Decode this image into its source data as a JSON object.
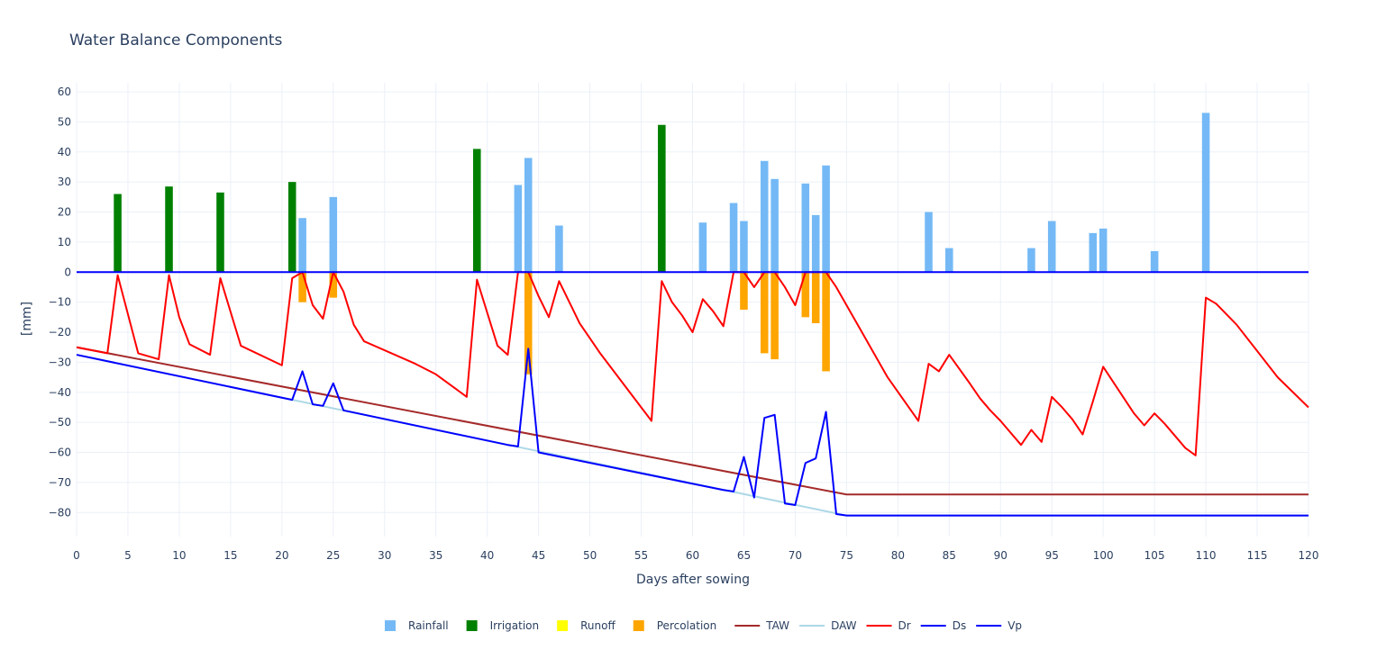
{
  "chart_data": {
    "type": "bar+line",
    "title": "Water Balance Components",
    "xlabel": "Days after sowing",
    "ylabel": "[mm]",
    "xlim": [
      0,
      120
    ],
    "ylim": [
      -88,
      63
    ],
    "xticks": [
      0,
      5,
      10,
      15,
      20,
      25,
      30,
      35,
      40,
      45,
      50,
      55,
      60,
      65,
      70,
      75,
      80,
      85,
      90,
      95,
      100,
      105,
      110,
      115,
      120
    ],
    "yticks": [
      60,
      50,
      40,
      30,
      20,
      10,
      0,
      -10,
      -20,
      -30,
      -40,
      -50,
      -60,
      -70,
      -80
    ],
    "grid": true,
    "legend_position": "bottom-center",
    "bar_series": [
      {
        "name": "Rainfall",
        "color": "#74b9f6",
        "points": [
          [
            22,
            18
          ],
          [
            25,
            25
          ],
          [
            43,
            29
          ],
          [
            44,
            38
          ],
          [
            47,
            15.5
          ],
          [
            61,
            16.5
          ],
          [
            64,
            23
          ],
          [
            65,
            17
          ],
          [
            67,
            37
          ],
          [
            68,
            31
          ],
          [
            71,
            29.5
          ],
          [
            72,
            19
          ],
          [
            73,
            35.5
          ],
          [
            83,
            20
          ],
          [
            85,
            8
          ],
          [
            93,
            8
          ],
          [
            95,
            17
          ],
          [
            99,
            13
          ],
          [
            100,
            14.5
          ],
          [
            105,
            7
          ],
          [
            110,
            53
          ]
        ]
      },
      {
        "name": "Irrigation",
        "color": "#008000",
        "points": [
          [
            4,
            26
          ],
          [
            9,
            28.5
          ],
          [
            14,
            26.5
          ],
          [
            21,
            30
          ],
          [
            39,
            41
          ],
          [
            57,
            49
          ]
        ]
      },
      {
        "name": "Runoff",
        "color": "#ffff00",
        "points": []
      },
      {
        "name": "Percolation",
        "color": "#ffa500",
        "points": [
          [
            22,
            -10
          ],
          [
            25,
            -8.5
          ],
          [
            44,
            -34
          ],
          [
            65,
            -12.5
          ],
          [
            67,
            -27
          ],
          [
            68,
            -29
          ],
          [
            71,
            -15
          ],
          [
            72,
            -17
          ],
          [
            73,
            -33
          ]
        ]
      }
    ],
    "line_series": [
      {
        "name": "TAW",
        "color": "#a52a2a",
        "points": [
          [
            0,
            -25
          ],
          [
            75,
            -74
          ],
          [
            120,
            -74
          ]
        ]
      },
      {
        "name": "DAW",
        "color": "#add8e6",
        "points": [
          [
            0,
            -27.5
          ],
          [
            75,
            -81
          ],
          [
            120,
            -81
          ]
        ]
      },
      {
        "name": "Dr",
        "color": "#ff0000",
        "points": [
          [
            0,
            -25
          ],
          [
            3,
            -27
          ],
          [
            4,
            -1
          ],
          [
            6,
            -27
          ],
          [
            8,
            -29
          ],
          [
            9,
            -1
          ],
          [
            10,
            -15
          ],
          [
            11,
            -24
          ],
          [
            13,
            -27.5
          ],
          [
            14,
            -2
          ],
          [
            16,
            -24.5
          ],
          [
            20,
            -31
          ],
          [
            21,
            -2
          ],
          [
            22,
            0
          ],
          [
            23,
            -11
          ],
          [
            24,
            -15.5
          ],
          [
            25,
            0
          ],
          [
            26,
            -6.5
          ],
          [
            27,
            -17.5
          ],
          [
            28,
            -23
          ],
          [
            33,
            -30.5
          ],
          [
            35,
            -34
          ],
          [
            38,
            -41.5
          ],
          [
            39,
            -2.5
          ],
          [
            41,
            -24.5
          ],
          [
            42,
            -27.5
          ],
          [
            43,
            0
          ],
          [
            44,
            0
          ],
          [
            45,
            -8
          ],
          [
            46,
            -15
          ],
          [
            47,
            -3
          ],
          [
            49,
            -17
          ],
          [
            51,
            -27
          ],
          [
            55,
            -45
          ],
          [
            56,
            -49.5
          ],
          [
            57,
            -3
          ],
          [
            58,
            -10
          ],
          [
            59,
            -14.5
          ],
          [
            60,
            -20
          ],
          [
            61,
            -9
          ],
          [
            62,
            -13
          ],
          [
            63,
            -18
          ],
          [
            64,
            0
          ],
          [
            65,
            0
          ],
          [
            66,
            -5
          ],
          [
            67,
            0
          ],
          [
            68,
            0
          ],
          [
            69,
            -5
          ],
          [
            70,
            -11
          ],
          [
            71,
            0
          ],
          [
            72,
            0
          ],
          [
            73,
            0
          ],
          [
            74,
            -5
          ],
          [
            77,
            -23
          ],
          [
            79,
            -35
          ],
          [
            82,
            -49.5
          ],
          [
            83,
            -30.5
          ],
          [
            84,
            -33
          ],
          [
            85,
            -27.5
          ],
          [
            87,
            -37
          ],
          [
            88,
            -42
          ],
          [
            89,
            -46
          ],
          [
            90,
            -49.5
          ],
          [
            92,
            -57.5
          ],
          [
            93,
            -52.5
          ],
          [
            94,
            -56.5
          ],
          [
            95,
            -41.5
          ],
          [
            96,
            -45
          ],
          [
            97,
            -49
          ],
          [
            98,
            -54
          ],
          [
            99,
            -43
          ],
          [
            100,
            -31.5
          ],
          [
            103,
            -47
          ],
          [
            104,
            -51
          ],
          [
            105,
            -47
          ],
          [
            106,
            -50.5
          ],
          [
            108,
            -58.5
          ],
          [
            109,
            -61
          ],
          [
            110,
            -8.5
          ],
          [
            111,
            -10.5
          ],
          [
            113,
            -17.5
          ],
          [
            117,
            -35
          ],
          [
            120,
            -45
          ]
        ]
      },
      {
        "name": "Ds",
        "color": "#0000ff",
        "points": [
          [
            0,
            -27.5
          ],
          [
            21,
            -42.5
          ],
          [
            22,
            -33
          ],
          [
            23,
            -44
          ],
          [
            24,
            -44.5
          ],
          [
            25,
            -37
          ],
          [
            26,
            -46
          ],
          [
            42,
            -57.5
          ],
          [
            43,
            -58
          ],
          [
            44,
            -25.5
          ],
          [
            45,
            -60
          ],
          [
            63,
            -72.5
          ],
          [
            64,
            -73
          ],
          [
            65,
            -61.5
          ],
          [
            66,
            -75
          ],
          [
            67,
            -48.5
          ],
          [
            68,
            -47.5
          ],
          [
            69,
            -77
          ],
          [
            70,
            -77.5
          ],
          [
            71,
            -63.5
          ],
          [
            72,
            -62
          ],
          [
            73,
            -46.5
          ],
          [
            74,
            -80.5
          ],
          [
            75,
            -81
          ],
          [
            120,
            -81
          ]
        ]
      },
      {
        "name": "Vp",
        "color": "#0000ff",
        "points": [
          [
            0,
            0
          ],
          [
            120,
            0
          ]
        ]
      }
    ]
  }
}
